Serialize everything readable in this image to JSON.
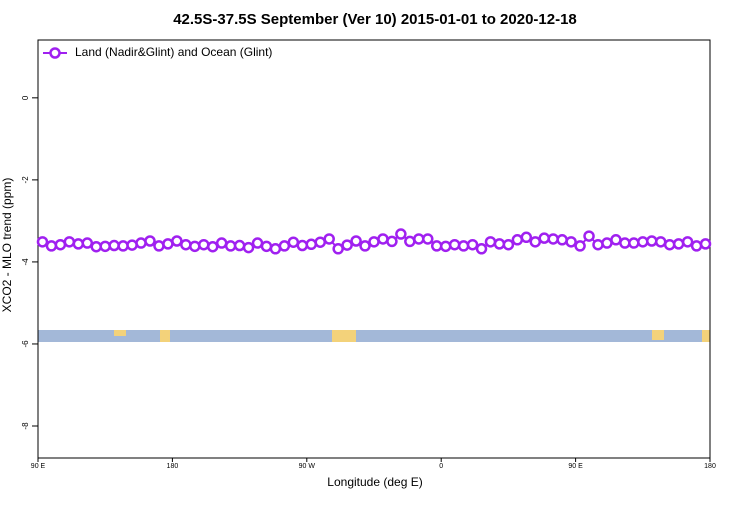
{
  "chart_data": {
    "type": "line",
    "title": "42.5S-37.5S September (Ver 10)   2015-01-01 to 2020-12-18",
    "x_label": "Longitude (deg E)",
    "y_label": "XCO2 - MLO trend (ppm)",
    "x": [
      93,
      99,
      105,
      111,
      117,
      123,
      129,
      135,
      141,
      147,
      153,
      159,
      165,
      171,
      177,
      183,
      189,
      195,
      201,
      207,
      213,
      219,
      225,
      231,
      237,
      243,
      249,
      255,
      261,
      267,
      273,
      279,
      285,
      291,
      297,
      303,
      309,
      315,
      321,
      327,
      333,
      339,
      345,
      351,
      357,
      363,
      369,
      375,
      381,
      387,
      393,
      399,
      405,
      411,
      417,
      423,
      429,
      435,
      441,
      447,
      453,
      459,
      465,
      471,
      477,
      483,
      489,
      495,
      501,
      507,
      513,
      519,
      525,
      531,
      537
    ],
    "series": [
      {
        "name": "Land (Nadir&Glint) and Ocean (Glint)",
        "color": "#a020f0",
        "values": [
          -3.51,
          -3.61,
          -3.58,
          -3.51,
          -3.56,
          -3.54,
          -3.63,
          -3.62,
          -3.6,
          -3.61,
          -3.59,
          -3.54,
          -3.49,
          -3.61,
          -3.56,
          -3.49,
          -3.58,
          -3.62,
          -3.58,
          -3.63,
          -3.54,
          -3.61,
          -3.6,
          -3.65,
          -3.54,
          -3.62,
          -3.68,
          -3.61,
          -3.52,
          -3.6,
          -3.57,
          -3.52,
          -3.44,
          -3.68,
          -3.59,
          -3.49,
          -3.61,
          -3.51,
          -3.44,
          -3.5,
          -3.32,
          -3.5,
          -3.44,
          -3.44,
          -3.61,
          -3.62,
          -3.58,
          -3.61,
          -3.58,
          -3.68,
          -3.51,
          -3.56,
          -3.58,
          -3.46,
          -3.4,
          -3.51,
          -3.42,
          -3.44,
          -3.46,
          -3.51,
          -3.61,
          -3.37,
          -3.58,
          -3.54,
          -3.46,
          -3.54,
          -3.54,
          -3.51,
          -3.49,
          -3.51,
          -3.58,
          -3.56,
          -3.51,
          -3.61,
          -3.56
        ]
      }
    ],
    "xlim": [
      90,
      540
    ],
    "xticks": [
      {
        "value": 90,
        "label": "90 E"
      },
      180,
      {
        "value": 270,
        "label": "90 W"
      },
      {
        "value": 360,
        "label": "0"
      },
      {
        "value": 450,
        "label": "90 E"
      },
      {
        "value": 540,
        "label": "180"
      }
    ],
    "ylim": [
      -8.78,
      1.41
    ],
    "yticks": [
      0,
      -2,
      -4,
      -6,
      -8
    ],
    "legend": "top-left"
  }
}
